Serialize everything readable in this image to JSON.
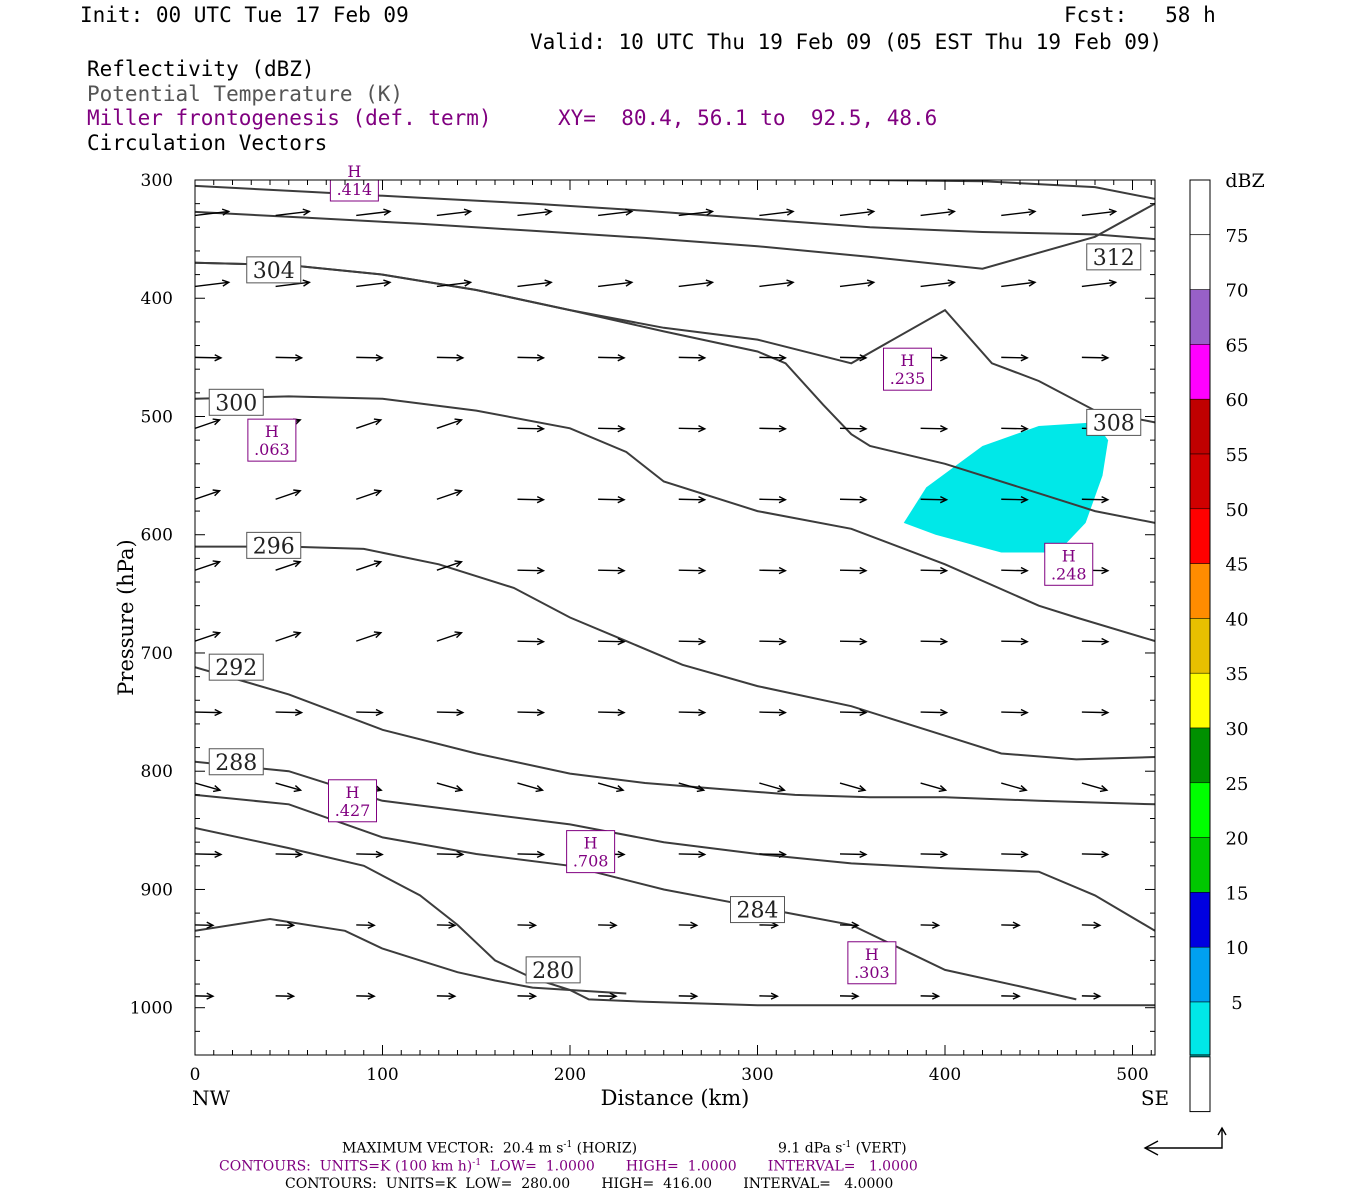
{
  "header": {
    "init": "Init: 00 UTC Tue 17 Feb 09",
    "fcst": "Fcst:   58 h",
    "valid": "Valid: 10 UTC Thu 19 Feb 09 (05 EST Thu 19 Feb 09)",
    "field1": "Reflectivity (dBZ)",
    "field2": "Potential Temperature (K)",
    "field3": "Miller frontogenesis (def. term)",
    "xy": "XY=  80.4, 56.1 to  92.5, 48.6",
    "field4": "Circulation Vectors"
  },
  "chart_data": {
    "type": "cross-section",
    "xlabel": "Distance (km)",
    "ylabel": "Pressure (hPa)",
    "xlim": [
      0,
      512
    ],
    "ylim": [
      1040,
      300
    ],
    "x_ticks": [
      0,
      100,
      200,
      300,
      400,
      500
    ],
    "y_ticks": [
      300,
      400,
      500,
      600,
      700,
      800,
      900,
      1000
    ],
    "x_end_labels": {
      "left": "NW",
      "right": "SE"
    },
    "colorbar": {
      "title": "dBZ",
      "levels": [
        "5",
        "10",
        "15",
        "20",
        "25",
        "30",
        "35",
        "40",
        "45",
        "50",
        "55",
        "60",
        "65",
        "70",
        "75"
      ],
      "colors": [
        "#00e8e8",
        "#00a0f0",
        "#0000e0",
        "#00c800",
        "#00ff00",
        "#009000",
        "#ffff00",
        "#e8c000",
        "#ff8c00",
        "#ff0000",
        "#d00000",
        "#c00000",
        "#ff00ff",
        "#9860c8",
        "#ffffff"
      ]
    },
    "theta_contours": [
      {
        "label": "312",
        "x": [
          0,
          60,
          120,
          180,
          240,
          300,
          360,
          420,
          480,
          512
        ],
        "y": [
          305,
          310,
          315,
          320,
          326,
          333,
          340,
          344,
          346,
          350
        ],
        "label_at": [
          490,
          365
        ]
      },
      {
        "label": "",
        "x": [
          360,
          420,
          480,
          512
        ],
        "y": [
          300,
          301,
          306,
          316
        ],
        "label_at": null
      },
      {
        "label": "",
        "x": [
          0,
          60,
          120,
          180,
          240,
          300,
          360,
          420,
          480,
          512
        ],
        "y": [
          327,
          332,
          337,
          343,
          349,
          356,
          365,
          375,
          348,
          320
        ],
        "label_at": null
      },
      {
        "label": "308",
        "x": [
          0,
          50,
          100,
          150,
          200,
          250,
          300,
          350,
          400,
          425,
          430,
          450,
          480,
          512
        ],
        "y": [
          370,
          372,
          380,
          393,
          410,
          425,
          435,
          455,
          410,
          455,
          458,
          470,
          495,
          505
        ],
        "label_at": [
          490,
          505
        ]
      },
      {
        "label": "304",
        "x": [
          0,
          50,
          100,
          150,
          200,
          250,
          300,
          315,
          335,
          350,
          360,
          400,
          450,
          480,
          512
        ],
        "y": [
          370,
          372,
          380,
          393,
          410,
          428,
          445,
          455,
          490,
          515,
          525,
          540,
          565,
          580,
          590
        ],
        "label_at": [
          42,
          376
        ]
      },
      {
        "label": "300",
        "x": [
          0,
          50,
          100,
          150,
          200,
          230,
          250,
          300,
          350,
          400,
          450,
          470,
          512
        ],
        "y": [
          485,
          483,
          485,
          495,
          510,
          530,
          555,
          580,
          595,
          625,
          660,
          670,
          690
        ],
        "label_at": [
          22,
          488
        ]
      },
      {
        "label": "296",
        "x": [
          0,
          50,
          90,
          130,
          170,
          200,
          230,
          260,
          300,
          350,
          400,
          430,
          470,
          512
        ],
        "y": [
          610,
          610,
          612,
          625,
          645,
          670,
          690,
          710,
          728,
          745,
          770,
          785,
          790,
          788
        ],
        "label_at": [
          42,
          609
        ]
      },
      {
        "label": "292",
        "x": [
          0,
          50,
          100,
          150,
          200,
          240,
          280,
          320,
          360,
          400,
          450,
          512
        ],
        "y": [
          712,
          735,
          765,
          785,
          802,
          810,
          815,
          820,
          822,
          822,
          825,
          828
        ],
        "label_at": [
          22,
          712
        ]
      },
      {
        "label": "288",
        "x": [
          0,
          50,
          100,
          150,
          200,
          250,
          300,
          350,
          400,
          450,
          480,
          512
        ],
        "y": [
          792,
          800,
          825,
          835,
          845,
          860,
          870,
          878,
          882,
          885,
          905,
          935
        ],
        "label_at": [
          22,
          792
        ]
      },
      {
        "label": "284",
        "x": [
          0,
          50,
          100,
          150,
          200,
          250,
          300,
          350,
          400,
          440,
          470
        ],
        "y": [
          820,
          828,
          856,
          870,
          880,
          900,
          915,
          930,
          968,
          982,
          993
        ],
        "label_at": [
          300,
          917
        ]
      },
      {
        "label": "280",
        "x": [
          0,
          50,
          90,
          120,
          140,
          150,
          160,
          180,
          200,
          230
        ],
        "y": [
          848,
          865,
          880,
          905,
          930,
          945,
          960,
          975,
          985,
          988
        ],
        "label_at": [
          191,
          968
        ]
      },
      {
        "label": "",
        "x": [
          0,
          40,
          80,
          100,
          120,
          140,
          160,
          180,
          200,
          210,
          240,
          300,
          400,
          512
        ],
        "y": [
          935,
          925,
          935,
          950,
          960,
          970,
          977,
          983,
          985,
          993,
          995,
          998,
          998,
          998
        ],
        "label_at": null
      }
    ],
    "frontogenesis_maxima": [
      {
        "label": "H",
        "value": ".414",
        "x": 85,
        "p": 300
      },
      {
        "label": "H",
        "value": ".235",
        "x": 380,
        "p": 460
      },
      {
        "label": "H",
        "value": ".063",
        "x": 41,
        "p": 520
      },
      {
        "label": "H",
        "value": ".248",
        "x": 466,
        "p": 625
      },
      {
        "label": "H",
        "value": ".427",
        "x": 84,
        "p": 825
      },
      {
        "label": "H",
        "value": ".708",
        "x": 211,
        "p": 868
      },
      {
        "label": "H",
        "value": ".303",
        "x": 361,
        "p": 962
      }
    ],
    "reflectivity_area": {
      "dbz": 5,
      "x": [
        390,
        420,
        450,
        480,
        487,
        484,
        475,
        460,
        430,
        395,
        378
      ],
      "p": [
        560,
        525,
        508,
        505,
        520,
        550,
        590,
        615,
        615,
        600,
        590
      ]
    },
    "footer": {
      "max_vector": "MAXIMUM VECTOR:  20.4 m s",
      "max_vector_sup": "-1",
      "horiz": " (HORIZ)",
      "vert": "9.1 dPa s",
      "vert_sup": "-1",
      "vert_tail": " (VERT)",
      "contours1": "CONTOURS:  UNITS=K (100 km h)",
      "contours1_sup": "-1",
      "contours1_tail": "  LOW=  1.0000       HIGH=  1.0000       INTERVAL=   1.0000",
      "contours2": "CONTOURS:  UNITS=K  LOW=  280.00       HIGH=  416.00       INTERVAL=   4.0000"
    }
  }
}
